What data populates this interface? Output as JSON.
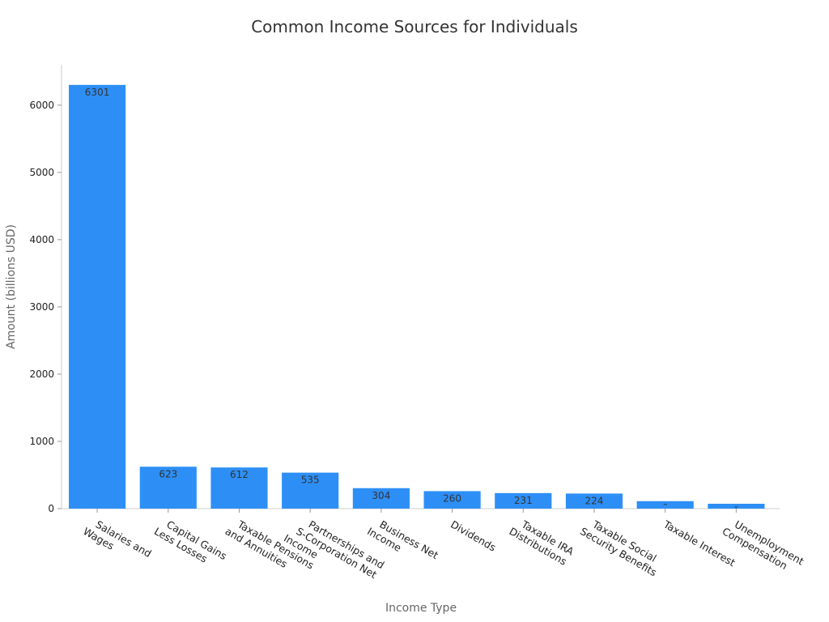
{
  "chart_data": {
    "type": "bar",
    "title": "Common Income Sources for Individuals",
    "xlabel": "Income Type",
    "ylabel": "Amount (billions USD)",
    "categories": [
      "Salaries and Wages",
      "Capital Gains Less Losses",
      "Taxable Pensions and Annuities",
      "Partnerships and S-Corporation Net Income",
      "Business Net Income",
      "Dividends",
      "Taxable IRA Distributions",
      "Taxable Social Security Benefits",
      "Taxable Interest",
      "Unemployment Compensation"
    ],
    "category_label_lines": [
      [
        "Salaries and",
        "Wages"
      ],
      [
        "Capital Gains",
        "Less Losses"
      ],
      [
        "Taxable Pensions",
        "and Annuities"
      ],
      [
        "Partnerships and",
        "S-Corporation Net",
        "Income"
      ],
      [
        "Business Net",
        "Income"
      ],
      [
        "Dividends"
      ],
      [
        "Taxable IRA",
        "Distributions"
      ],
      [
        "Taxable Social",
        "Security Benefits"
      ],
      [
        "Taxable Interest"
      ],
      [
        "Unemployment",
        "Compensation"
      ]
    ],
    "values": [
      6301,
      623,
      612,
      535,
      304,
      260,
      231,
      224,
      111,
      72
    ],
    "data_labels": [
      "6301",
      "623",
      "612",
      "535",
      "304",
      "260",
      "231",
      "224",
      "",
      ""
    ],
    "ylim": [
      0,
      6600
    ],
    "yticks": [
      0,
      1000,
      2000,
      3000,
      4000,
      5000,
      6000
    ],
    "grid": false,
    "bar_color": "#2d8ff6"
  }
}
